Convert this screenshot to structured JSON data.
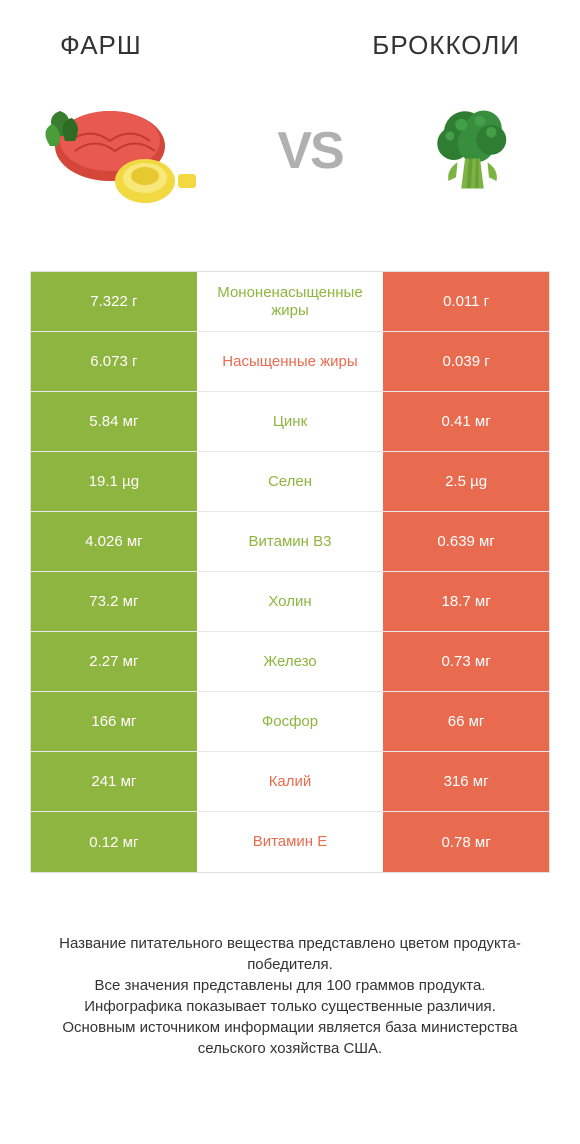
{
  "colors": {
    "left": "#8eb53f",
    "right": "#e96b4f",
    "leftText": "#8eb53f",
    "rightText": "#e96b4f",
    "gray": "#b0b0b0"
  },
  "header": {
    "left": "ФАРШ",
    "right": "БРОККОЛИ",
    "vs": "VS"
  },
  "rows": [
    {
      "left": "7.322 г",
      "label": "Мононенасыщенные жиры",
      "right": "0.011 г",
      "winner": "left"
    },
    {
      "left": "6.073 г",
      "label": "Насыщенные жиры",
      "right": "0.039 г",
      "winner": "right"
    },
    {
      "left": "5.84 мг",
      "label": "Цинк",
      "right": "0.41 мг",
      "winner": "left"
    },
    {
      "left": "19.1 µg",
      "label": "Селен",
      "right": "2.5 µg",
      "winner": "left"
    },
    {
      "left": "4.026 мг",
      "label": "Витамин B3",
      "right": "0.639 мг",
      "winner": "left"
    },
    {
      "left": "73.2 мг",
      "label": "Холин",
      "right": "18.7 мг",
      "winner": "left"
    },
    {
      "left": "2.27 мг",
      "label": "Железо",
      "right": "0.73 мг",
      "winner": "left"
    },
    {
      "left": "166 мг",
      "label": "Фосфор",
      "right": "66 мг",
      "winner": "left"
    },
    {
      "left": "241 мг",
      "label": "Калий",
      "right": "316 мг",
      "winner": "right"
    },
    {
      "left": "0.12 мг",
      "label": "Витамин E",
      "right": "0.78 мг",
      "winner": "right"
    }
  ],
  "footer": {
    "line1": "Название питательного вещества представлено цветом продукта-победителя.",
    "line2": "Все значения представлены для 100 граммов продукта.",
    "line3": "Инфографика показывает только существенные различия.",
    "line4": "Основным источником информации является база министерства сельского хозяйства США."
  }
}
